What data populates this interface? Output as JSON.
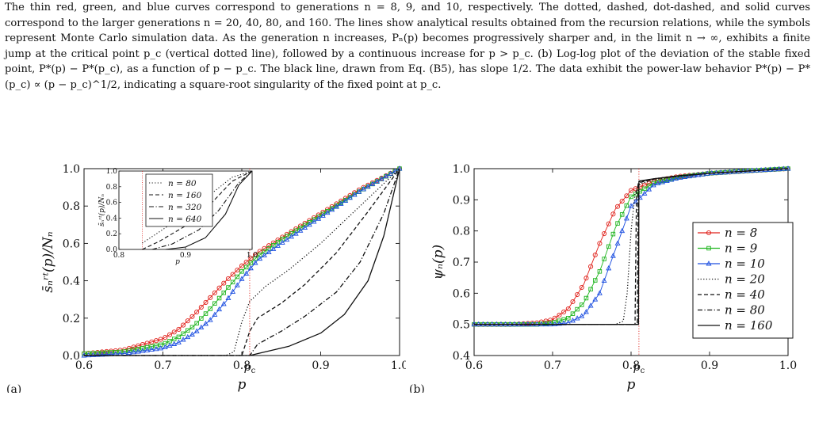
{
  "caption": {
    "text": "The thin red, green, and blue curves correspond to generations n = 8, 9, and 10, respectively. The dotted, dashed, dot-dashed, and solid curves correspond to the larger generations n = 20, 40, 80, and 160. The lines show analytical results obtained from the recursion relations, while the symbols represent Monte Carlo simulation data. As the generation n increases, Pₙ(p) becomes progressively sharper and, in the limit n → ∞, exhibits a finite jump at the critical point p_c (vertical dotted line), followed by a continuous increase for p > p_c. (b) Log-log plot of the deviation of the stable fixed point, P*(p) − P*(p_c), as a function of p − p_c. The black line, drawn from Eq. (B5), has slope 1/2. The data exhibit the power-law behavior P*(p) − P*(p_c) ∝ (p − p_c)^1/2, indicating a square-root singularity of the fixed point at p_c."
  },
  "colors": {
    "red": "#e0201a",
    "green": "#1fb51f",
    "blue": "#1d4fe0",
    "black": "#111111",
    "critical": "#e0201a"
  },
  "chart_data": [
    {
      "panel_label": "(a)",
      "type": "line",
      "xlabel": "p",
      "ylabel": "s̄ₙʳᵗ(p)/Nₙ",
      "xlim": [
        0.6,
        1.0
      ],
      "ylim": [
        0.0,
        1.0
      ],
      "xticks": [
        "0.6",
        "0.7",
        "0.8",
        "0.9",
        "1.0"
      ],
      "yticks": [
        "0.0",
        "0.2",
        "0.4",
        "0.6",
        "0.8",
        "1.0"
      ],
      "critical_label": "pc",
      "critical_p": 0.81,
      "series": [
        {
          "name": "n = 8",
          "color": "#e0201a",
          "marker": "circle",
          "style": "solid",
          "x": [
            0.6,
            0.65,
            0.7,
            0.72,
            0.74,
            0.76,
            0.78,
            0.8,
            0.82,
            0.85,
            0.9,
            0.95,
            1.0
          ],
          "y": [
            0.01,
            0.03,
            0.09,
            0.14,
            0.22,
            0.31,
            0.4,
            0.48,
            0.55,
            0.63,
            0.76,
            0.89,
            1.0
          ]
        },
        {
          "name": "n = 9",
          "color": "#1fb51f",
          "marker": "square",
          "style": "solid",
          "x": [
            0.6,
            0.65,
            0.7,
            0.72,
            0.74,
            0.76,
            0.78,
            0.8,
            0.82,
            0.85,
            0.9,
            0.95,
            1.0
          ],
          "y": [
            0.01,
            0.02,
            0.06,
            0.1,
            0.16,
            0.25,
            0.35,
            0.45,
            0.53,
            0.62,
            0.75,
            0.88,
            1.0
          ]
        },
        {
          "name": "n = 10",
          "color": "#1d4fe0",
          "marker": "triangle",
          "style": "solid",
          "x": [
            0.6,
            0.65,
            0.7,
            0.72,
            0.74,
            0.76,
            0.78,
            0.8,
            0.82,
            0.85,
            0.9,
            0.95,
            1.0
          ],
          "y": [
            0.0,
            0.01,
            0.04,
            0.07,
            0.12,
            0.19,
            0.29,
            0.41,
            0.51,
            0.6,
            0.74,
            0.88,
            1.0
          ]
        },
        {
          "name": "n = 20",
          "color": "#111111",
          "marker": "none",
          "style": "dotted",
          "x": [
            0.6,
            0.78,
            0.79,
            0.8,
            0.81,
            0.83,
            0.86,
            0.9,
            0.95,
            1.0
          ],
          "y": [
            0.0,
            0.0,
            0.02,
            0.18,
            0.29,
            0.37,
            0.46,
            0.6,
            0.8,
            1.0
          ]
        },
        {
          "name": "n = 40",
          "color": "#111111",
          "marker": "none",
          "style": "dashed",
          "x": [
            0.6,
            0.8,
            0.81,
            0.82,
            0.85,
            0.88,
            0.92,
            0.96,
            1.0
          ],
          "y": [
            0.0,
            0.0,
            0.13,
            0.2,
            0.28,
            0.38,
            0.55,
            0.77,
            1.0
          ]
        },
        {
          "name": "n = 80",
          "color": "#111111",
          "marker": "none",
          "style": "dashdot",
          "x": [
            0.6,
            0.81,
            0.82,
            0.85,
            0.88,
            0.92,
            0.95,
            0.98,
            1.0
          ],
          "y": [
            0.0,
            0.0,
            0.06,
            0.13,
            0.21,
            0.34,
            0.5,
            0.76,
            1.0
          ]
        },
        {
          "name": "n = 160",
          "color": "#111111",
          "marker": "none",
          "style": "solid",
          "x": [
            0.6,
            0.81,
            0.82,
            0.86,
            0.9,
            0.93,
            0.96,
            0.98,
            1.0
          ],
          "y": [
            0.0,
            0.0,
            0.01,
            0.05,
            0.12,
            0.22,
            0.4,
            0.64,
            1.0
          ]
        }
      ],
      "inset": {
        "xlim": [
          0.8,
          1.0
        ],
        "ylim": [
          0.0,
          1.0
        ],
        "xticks": [
          "0.8",
          "0.9",
          "1.0"
        ],
        "yticks": [
          "0.0",
          "0.2",
          "0.4",
          "0.6",
          "0.8",
          "1.0"
        ],
        "xlabel": "p",
        "ylabel": "s̄ₙʳᵗ(p)/Nₙ",
        "critical_p": 0.835,
        "series": [
          {
            "name": "n = 80",
            "style": "dotted",
            "x": [
              0.835,
              0.86,
              0.9,
              0.94,
              0.97,
              1.0
            ],
            "y": [
              0.08,
              0.22,
              0.45,
              0.72,
              0.92,
              1.0
            ]
          },
          {
            "name": "n = 160",
            "style": "dashed",
            "x": [
              0.835,
              0.86,
              0.9,
              0.94,
              0.97,
              1.0
            ],
            "y": [
              0.0,
              0.1,
              0.3,
              0.6,
              0.87,
              1.0
            ]
          },
          {
            "name": "n = 320",
            "style": "dashdot",
            "x": [
              0.85,
              0.88,
              0.92,
              0.95,
              0.98,
              1.0
            ],
            "y": [
              0.0,
              0.07,
              0.25,
              0.5,
              0.85,
              1.0
            ]
          },
          {
            "name": "n = 640",
            "style": "solid",
            "x": [
              0.87,
              0.9,
              0.93,
              0.96,
              0.98,
              1.0
            ],
            "y": [
              0.0,
              0.03,
              0.15,
              0.45,
              0.82,
              1.0
            ]
          }
        ]
      }
    },
    {
      "panel_label": "(b)",
      "type": "line",
      "xlabel": "p",
      "ylabel": "ψₙ(p)",
      "xlim": [
        0.6,
        1.0
      ],
      "ylim": [
        0.4,
        1.0
      ],
      "xticks": [
        "0.6",
        "0.7",
        "0.8",
        "0.9",
        "1.0"
      ],
      "yticks": [
        "0.4",
        "0.5",
        "0.6",
        "0.7",
        "0.8",
        "0.9",
        "1.0"
      ],
      "critical_label": "pc",
      "critical_p": 0.81,
      "series": [
        {
          "name": "n = 8",
          "color": "#e0201a",
          "marker": "circle",
          "style": "solid",
          "x": [
            0.6,
            0.65,
            0.68,
            0.7,
            0.72,
            0.74,
            0.76,
            0.78,
            0.8,
            0.83,
            0.86,
            0.9,
            0.95,
            1.0
          ],
          "y": [
            0.5,
            0.5,
            0.505,
            0.515,
            0.55,
            0.63,
            0.76,
            0.87,
            0.93,
            0.96,
            0.975,
            0.985,
            0.993,
            1.0
          ]
        },
        {
          "name": "n = 9",
          "color": "#1fb51f",
          "marker": "square",
          "style": "solid",
          "x": [
            0.6,
            0.65,
            0.68,
            0.7,
            0.72,
            0.74,
            0.76,
            0.78,
            0.8,
            0.83,
            0.86,
            0.9,
            0.95,
            1.0
          ],
          "y": [
            0.5,
            0.5,
            0.5,
            0.505,
            0.52,
            0.57,
            0.67,
            0.81,
            0.91,
            0.955,
            0.972,
            0.985,
            0.993,
            1.0
          ]
        },
        {
          "name": "n = 10",
          "color": "#1d4fe0",
          "marker": "triangle",
          "style": "solid",
          "x": [
            0.6,
            0.65,
            0.68,
            0.7,
            0.72,
            0.74,
            0.76,
            0.78,
            0.8,
            0.83,
            0.86,
            0.9,
            0.95,
            1.0
          ],
          "y": [
            0.5,
            0.5,
            0.5,
            0.5,
            0.505,
            0.53,
            0.6,
            0.74,
            0.88,
            0.95,
            0.97,
            0.985,
            0.993,
            1.0
          ]
        },
        {
          "name": "n = 20",
          "color": "#111111",
          "marker": "none",
          "style": "dotted",
          "x": [
            0.6,
            0.78,
            0.79,
            0.795,
            0.8,
            0.805,
            0.81,
            0.83,
            0.86,
            0.9,
            1.0
          ],
          "y": [
            0.5,
            0.5,
            0.51,
            0.6,
            0.8,
            0.92,
            0.95,
            0.965,
            0.975,
            0.985,
            1.0
          ]
        },
        {
          "name": "n = 40",
          "color": "#111111",
          "marker": "none",
          "style": "dashed",
          "x": [
            0.6,
            0.805,
            0.807,
            0.81,
            0.83,
            0.86,
            0.9,
            1.0
          ],
          "y": [
            0.5,
            0.5,
            0.93,
            0.955,
            0.967,
            0.976,
            0.985,
            1.0
          ]
        },
        {
          "name": "n = 80",
          "color": "#111111",
          "marker": "none",
          "style": "dashdot",
          "x": [
            0.6,
            0.808,
            0.809,
            0.81,
            0.83,
            0.86,
            0.9,
            1.0
          ],
          "y": [
            0.5,
            0.5,
            0.95,
            0.958,
            0.968,
            0.977,
            0.985,
            1.0
          ]
        },
        {
          "name": "n = 160",
          "color": "#111111",
          "marker": "none",
          "style": "solid",
          "x": [
            0.6,
            0.8095,
            0.81,
            0.83,
            0.86,
            0.9,
            1.0
          ],
          "y": [
            0.5,
            0.5,
            0.96,
            0.968,
            0.977,
            0.985,
            1.0
          ]
        }
      ]
    }
  ]
}
